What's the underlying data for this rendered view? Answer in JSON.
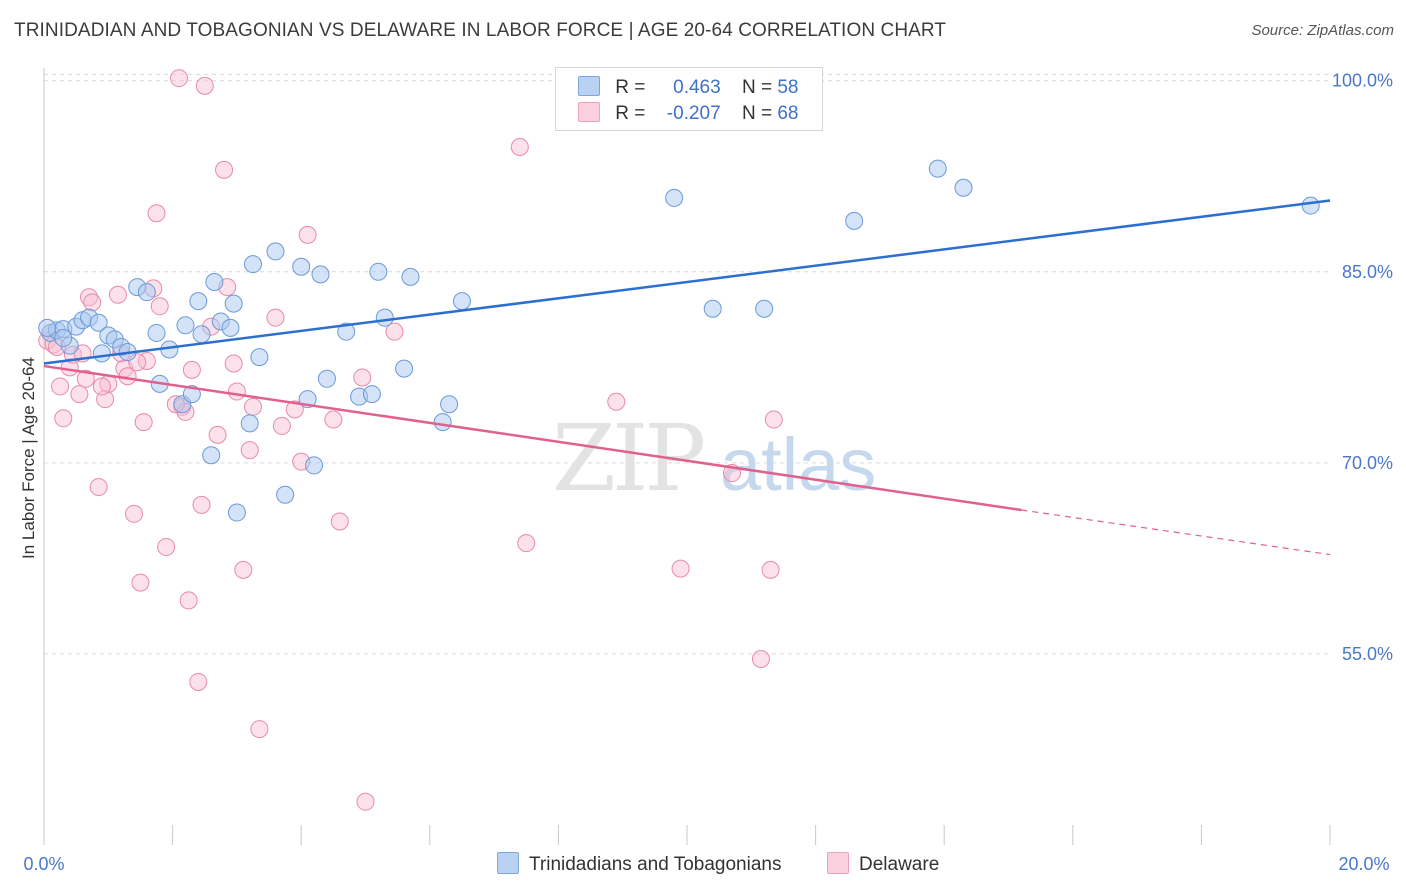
{
  "title": "TRINIDADIAN AND TOBAGONIAN VS DELAWARE IN LABOR FORCE | AGE 20-64 CORRELATION CHART",
  "source": "Source: ZipAtlas.com",
  "watermark": "ZIPatlas",
  "colors": {
    "blue_fill": "#aac8f0",
    "blue_stroke": "#6a9ad8",
    "blue_line": "#2d6fd0",
    "pink_fill": "#f8bcd0",
    "pink_stroke": "#e88aaa",
    "pink_line": "#e0608e",
    "axis_text": "#4a78c8"
  },
  "legend": {
    "rows": [
      {
        "r_label": "R =",
        "r_value": "0.463",
        "n_label": "N =",
        "n_value": "58",
        "color": "#aac8f0"
      },
      {
        "r_label": "R =",
        "r_value": "-0.207",
        "n_label": "N =",
        "n_value": "68",
        "color": "#f8bcd0"
      }
    ]
  },
  "bottom_legend": {
    "series1": "Trinidadians and Tobagonians",
    "series2": "Delaware"
  },
  "chart_data": {
    "type": "scatter",
    "title": "TRINIDADIAN AND TOBAGONIAN VS DELAWARE IN LABOR FORCE | AGE 20-64 CORRELATION CHART",
    "xlabel": "",
    "ylabel": "In Labor Force | Age 20-64",
    "xlim": [
      0,
      20
    ],
    "ylim": [
      40,
      101
    ],
    "x_tick_labels": [
      "0.0%",
      "20.0%"
    ],
    "y_ticks": [
      55,
      70,
      85,
      100
    ],
    "y_tick_labels": [
      "55.0%",
      "70.0%",
      "85.0%",
      "100.0%"
    ],
    "grid": true,
    "legend_position": "top-center",
    "series": [
      {
        "name": "Trinidadians and Tobagonians",
        "color": "#aac8f0",
        "points": [
          [
            0.1,
            80.2
          ],
          [
            0.2,
            80.4
          ],
          [
            0.3,
            80.5
          ],
          [
            0.4,
            79.2
          ],
          [
            0.5,
            80.7
          ],
          [
            0.6,
            81.2
          ],
          [
            0.7,
            81.4
          ],
          [
            0.85,
            81.0
          ],
          [
            0.9,
            78.6
          ],
          [
            1.0,
            80.0
          ],
          [
            1.1,
            79.7
          ],
          [
            1.2,
            79.1
          ],
          [
            1.3,
            78.7
          ],
          [
            1.45,
            83.8
          ],
          [
            1.6,
            83.4
          ],
          [
            1.75,
            80.2
          ],
          [
            1.8,
            76.2
          ],
          [
            1.95,
            78.9
          ],
          [
            2.15,
            74.6
          ],
          [
            2.2,
            80.8
          ],
          [
            2.3,
            75.4
          ],
          [
            2.4,
            82.7
          ],
          [
            2.45,
            80.1
          ],
          [
            2.6,
            70.6
          ],
          [
            2.65,
            84.2
          ],
          [
            2.75,
            81.1
          ],
          [
            2.9,
            80.6
          ],
          [
            2.95,
            82.5
          ],
          [
            3.0,
            66.1
          ],
          [
            3.2,
            73.1
          ],
          [
            3.25,
            85.6
          ],
          [
            3.35,
            78.3
          ],
          [
            3.6,
            86.6
          ],
          [
            3.75,
            67.5
          ],
          [
            4.0,
            85.4
          ],
          [
            4.1,
            75.0
          ],
          [
            4.2,
            69.8
          ],
          [
            4.3,
            84.8
          ],
          [
            4.4,
            76.6
          ],
          [
            4.7,
            80.3
          ],
          [
            4.9,
            75.2
          ],
          [
            5.1,
            75.4
          ],
          [
            5.2,
            85.0
          ],
          [
            5.3,
            81.4
          ],
          [
            5.6,
            77.4
          ],
          [
            5.7,
            84.6
          ],
          [
            6.2,
            73.2
          ],
          [
            6.3,
            74.6
          ],
          [
            6.5,
            82.7
          ],
          [
            9.8,
            90.8
          ],
          [
            10.4,
            82.1
          ],
          [
            11.2,
            82.1
          ],
          [
            12.6,
            89.0
          ],
          [
            13.9,
            93.1
          ],
          [
            14.3,
            91.6
          ],
          [
            19.7,
            90.2
          ],
          [
            0.05,
            80.6
          ],
          [
            0.3,
            79.8
          ]
        ]
      },
      {
        "name": "Delaware",
        "color": "#f8bcd0",
        "points": [
          [
            0.05,
            79.6
          ],
          [
            0.1,
            80.2
          ],
          [
            0.15,
            79.3
          ],
          [
            0.25,
            76.0
          ],
          [
            0.3,
            73.5
          ],
          [
            0.4,
            77.5
          ],
          [
            0.45,
            78.5
          ],
          [
            0.55,
            75.4
          ],
          [
            0.65,
            76.6
          ],
          [
            0.7,
            83.0
          ],
          [
            0.75,
            82.6
          ],
          [
            0.85,
            68.1
          ],
          [
            0.95,
            75.0
          ],
          [
            1.0,
            76.2
          ],
          [
            1.15,
            83.2
          ],
          [
            1.2,
            78.6
          ],
          [
            1.25,
            77.4
          ],
          [
            1.3,
            76.8
          ],
          [
            1.4,
            66.0
          ],
          [
            1.5,
            60.6
          ],
          [
            1.55,
            73.2
          ],
          [
            1.6,
            78.0
          ],
          [
            1.7,
            83.7
          ],
          [
            1.75,
            89.6
          ],
          [
            1.8,
            82.3
          ],
          [
            1.9,
            63.4
          ],
          [
            2.1,
            100.2
          ],
          [
            2.15,
            74.4
          ],
          [
            2.2,
            74.0
          ],
          [
            2.25,
            59.2
          ],
          [
            2.3,
            77.3
          ],
          [
            2.4,
            52.8
          ],
          [
            2.45,
            66.7
          ],
          [
            2.5,
            99.6
          ],
          [
            2.6,
            80.7
          ],
          [
            2.7,
            72.2
          ],
          [
            2.8,
            93.0
          ],
          [
            2.85,
            83.8
          ],
          [
            2.95,
            77.8
          ],
          [
            3.0,
            75.6
          ],
          [
            3.1,
            61.6
          ],
          [
            3.2,
            71.0
          ],
          [
            3.25,
            74.4
          ],
          [
            3.35,
            49.1
          ],
          [
            3.6,
            81.4
          ],
          [
            3.7,
            72.9
          ],
          [
            3.9,
            74.2
          ],
          [
            4.0,
            70.1
          ],
          [
            4.1,
            87.9
          ],
          [
            4.5,
            73.4
          ],
          [
            4.6,
            65.4
          ],
          [
            4.95,
            76.7
          ],
          [
            5.0,
            43.4
          ],
          [
            5.45,
            80.3
          ],
          [
            7.4,
            94.8
          ],
          [
            7.5,
            63.7
          ],
          [
            8.9,
            74.8
          ],
          [
            9.9,
            61.7
          ],
          [
            10.3,
            100.0
          ],
          [
            10.7,
            69.2
          ],
          [
            11.15,
            54.6
          ],
          [
            11.3,
            61.6
          ],
          [
            11.35,
            73.4
          ],
          [
            0.2,
            79.1
          ],
          [
            0.6,
            78.6
          ],
          [
            0.9,
            76.0
          ],
          [
            1.45,
            77.9
          ],
          [
            2.05,
            74.6
          ]
        ]
      }
    ],
    "trend_lines": [
      {
        "series": "Trinidadians and Tobagonians",
        "x": [
          0,
          20
        ],
        "y": [
          77.8,
          90.6
        ]
      },
      {
        "series": "Delaware",
        "x": [
          0,
          15.2,
          20
        ],
        "y": [
          77.6,
          66.3,
          62.8
        ],
        "dashed_after_x": 15.2
      }
    ]
  }
}
